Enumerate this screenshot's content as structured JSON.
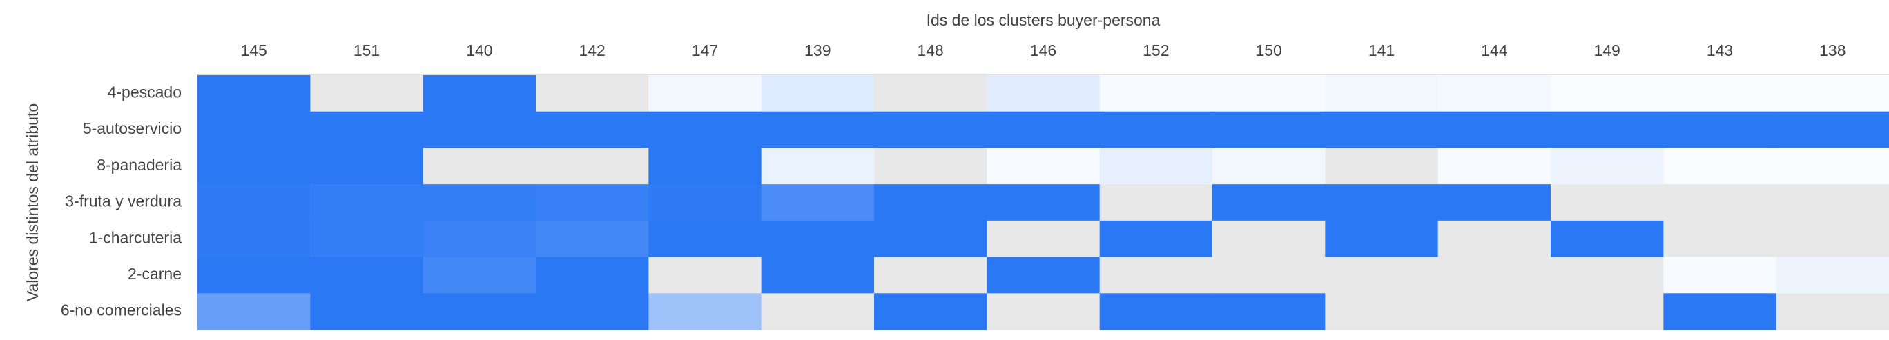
{
  "chart_data": {
    "type": "heatmap",
    "title": "",
    "xlabel": "Ids de los clusters buyer-persona",
    "ylabel": "Valores distintos del atributo",
    "x_axis_position": "top",
    "colors": {
      "high": "#2b78f5",
      "low": "#ffffff",
      "no_data": "#e8e8e8",
      "axis_text": "#444444",
      "axis_line": "#d8d8d8"
    },
    "value_range": [
      0,
      1
    ],
    "columns": [
      "145",
      "151",
      "140",
      "142",
      "147",
      "139",
      "148",
      "146",
      "152",
      "150",
      "141",
      "144",
      "149",
      "143",
      "138"
    ],
    "rows": [
      "4-pescado",
      "5-autoservicio",
      "8-panaderia",
      "3-fruta y verdura",
      "1-charcuteria",
      "2-carne",
      "6-no comerciales"
    ],
    "values": [
      [
        1.0,
        null,
        1.0,
        null,
        0.06,
        0.15,
        null,
        0.14,
        0.04,
        0.04,
        0.06,
        0.05,
        0.03,
        0.02,
        0.02
      ],
      [
        1.0,
        1.0,
        1.0,
        1.0,
        1.0,
        1.0,
        1.0,
        1.0,
        1.0,
        1.0,
        1.0,
        1.0,
        1.0,
        1.0,
        1.0
      ],
      [
        1.0,
        1.0,
        null,
        null,
        1.0,
        0.1,
        null,
        0.04,
        0.12,
        0.06,
        null,
        0.04,
        0.08,
        0.03,
        0.02
      ],
      [
        0.98,
        0.96,
        0.96,
        0.94,
        0.98,
        0.85,
        1.0,
        1.0,
        null,
        1.0,
        1.0,
        1.0,
        null,
        null,
        null
      ],
      [
        0.98,
        0.96,
        0.93,
        0.88,
        1.0,
        1.0,
        1.0,
        null,
        1.0,
        null,
        1.0,
        null,
        1.0,
        null,
        null
      ],
      [
        1.0,
        1.0,
        0.88,
        1.0,
        null,
        1.0,
        null,
        1.0,
        null,
        null,
        null,
        null,
        null,
        0.04,
        0.08
      ],
      [
        0.72,
        1.0,
        1.0,
        1.0,
        0.45,
        null,
        1.0,
        null,
        1.0,
        1.0,
        null,
        null,
        null,
        1.0,
        null
      ]
    ],
    "grid": false,
    "legend": "none"
  }
}
